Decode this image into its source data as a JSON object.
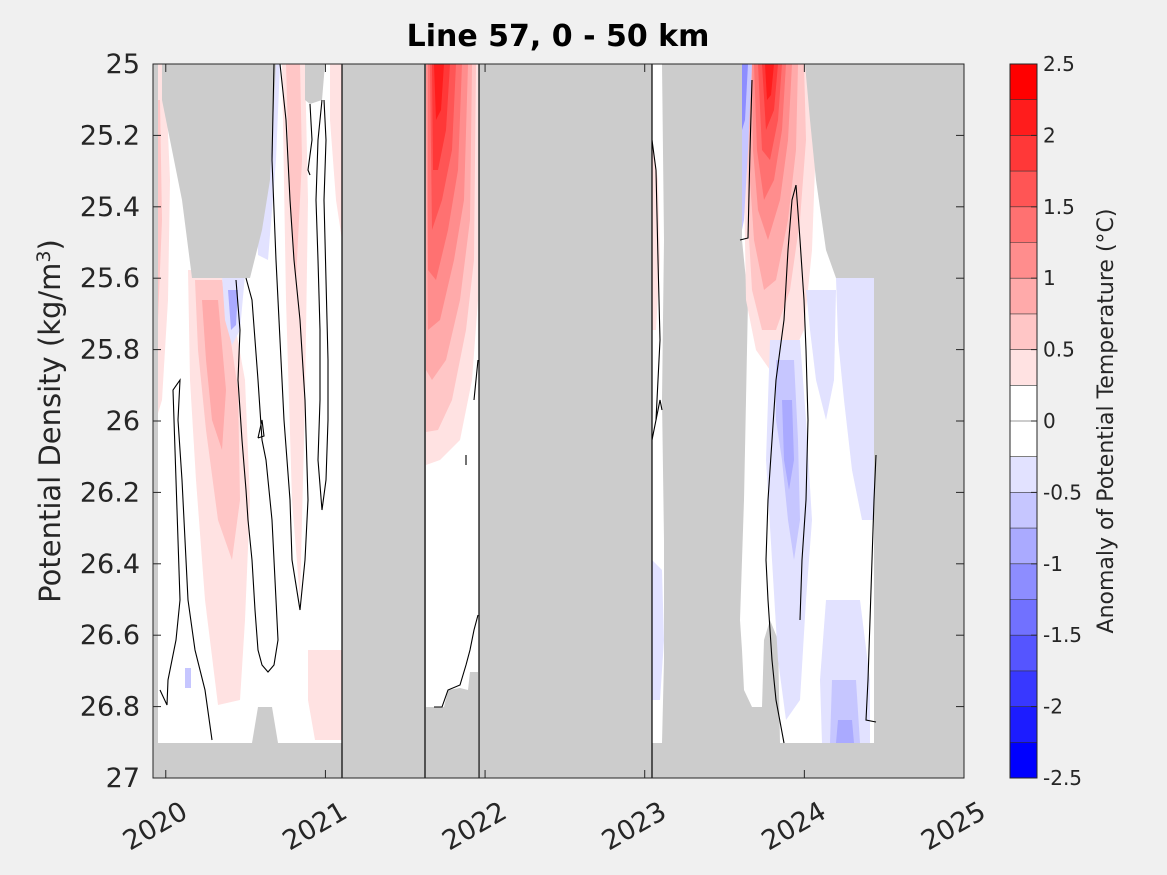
{
  "chart_data": {
    "type": "heatmap",
    "title": "Line 57, 0 - 50 km",
    "ylabel_main": "Potential Density (kg/m",
    "ylabel_sup": "3",
    "ylabel_close": ")",
    "colorbar_label": "Anomaly of Potential Temperature (°C)",
    "x_ticks": [
      "2020",
      "2021",
      "2022",
      "2023",
      "2024",
      "2025"
    ],
    "x_tick_values": [
      2020,
      2021,
      2022,
      2023,
      2024,
      2025
    ],
    "xlim": [
      2019.92,
      2025
    ],
    "y_ticks": [
      "25",
      "25.2",
      "25.4",
      "25.6",
      "25.8",
      "26",
      "26.2",
      "26.4",
      "26.6",
      "26.8",
      "27"
    ],
    "y_tick_values": [
      25,
      25.2,
      25.4,
      25.6,
      25.8,
      26,
      26.2,
      26.4,
      26.6,
      26.8,
      27
    ],
    "ylim": [
      25,
      27
    ],
    "y_reversed": true,
    "colorbar_ticks": [
      "2.5",
      "2",
      "1.5",
      "1",
      "0.5",
      "0",
      "-0.5",
      "-1",
      "-1.5",
      "-2",
      "-2.5"
    ],
    "colorbar_tick_values": [
      2.5,
      2,
      1.5,
      1,
      0.5,
      0,
      -0.5,
      -1,
      -1.5,
      -2,
      -2.5
    ],
    "clim": [
      -2.5,
      2.5
    ],
    "colorbar_levels": [
      "#ff0000",
      "#ff1c1c",
      "#ff3838",
      "#ff5555",
      "#ff7171",
      "#ff8d8d",
      "#ffaaaa",
      "#ffc6c6",
      "#ffe2e2",
      "#ffffff",
      "#ffffff",
      "#e2e2ff",
      "#c6c6ff",
      "#aaaaff",
      "#8d8dff",
      "#7171ff",
      "#5555ff",
      "#3838ff",
      "#1c1cff",
      "#0000ff"
    ],
    "nodata_color": "#cccccc",
    "data_gaps_x": [
      [
        2021.1,
        2021.63
      ],
      [
        2021.97,
        2023.03
      ]
    ],
    "separator_lines_x": [
      2021.1,
      2021.63,
      2021.97,
      2023.03
    ],
    "grid": false,
    "anomaly_features": [
      {
        "x": 2020.0,
        "y": [
          25.2,
          25.9
        ],
        "value": 0.5
      },
      {
        "x": 2020.35,
        "y": [
          25.6,
          26.5
        ],
        "value": 0.75
      },
      {
        "x": 2020.45,
        "y": [
          25.6,
          25.8
        ],
        "value": -0.5
      },
      {
        "x": 2020.65,
        "y": [
          25.0,
          25.6
        ],
        "value": -0.5
      },
      {
        "x": 2020.8,
        "y": [
          25.0,
          26.0
        ],
        "value": 0.5
      },
      {
        "x": 2021.0,
        "y": [
          26.6,
          26.9
        ],
        "value": 0.5
      },
      {
        "x": 2021.75,
        "y": [
          25.0,
          26.1
        ],
        "value": 2.0
      },
      {
        "x": 2023.6,
        "y": [
          25.0,
          25.5
        ],
        "value": -1.0
      },
      {
        "x": 2023.75,
        "y": [
          25.0,
          25.8
        ],
        "value": 2.0
      },
      {
        "x": 2023.9,
        "y": [
          25.8,
          26.6
        ],
        "value": -0.75
      },
      {
        "x": 2024.2,
        "y": [
          25.6,
          26.9
        ],
        "value": -0.5
      }
    ]
  }
}
